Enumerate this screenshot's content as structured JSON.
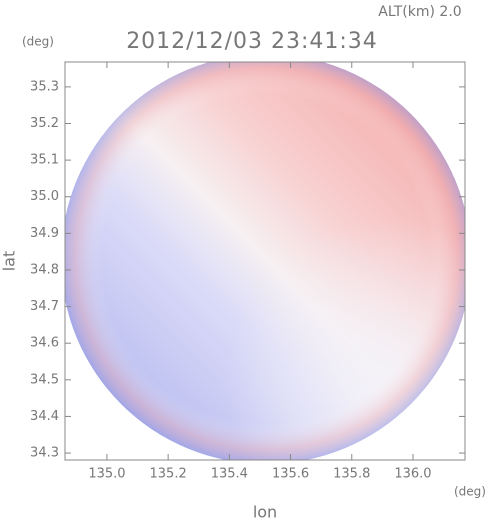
{
  "chart_data": {
    "type": "radar-map",
    "subtitle": "ALT(km) 2.0",
    "title": "2012/12/03 23:41:34",
    "y_unit": "(deg)",
    "x_unit": "(deg)",
    "xlabel": "lon",
    "ylabel": "lat",
    "xlim": [
      134.863,
      136.17
    ],
    "ylim": [
      34.281,
      35.368
    ],
    "xticks": [
      {
        "value": 135,
        "label": "135.0"
      },
      135.2,
      135.4,
      135.6,
      135.8,
      {
        "value": 136,
        "label": "136.0"
      }
    ],
    "yticks": [
      34.3,
      34.4,
      34.5,
      34.6,
      34.7,
      34.8,
      34.9,
      {
        "value": 35,
        "label": "35.0"
      },
      35.1,
      35.2,
      35.3
    ]
  }
}
